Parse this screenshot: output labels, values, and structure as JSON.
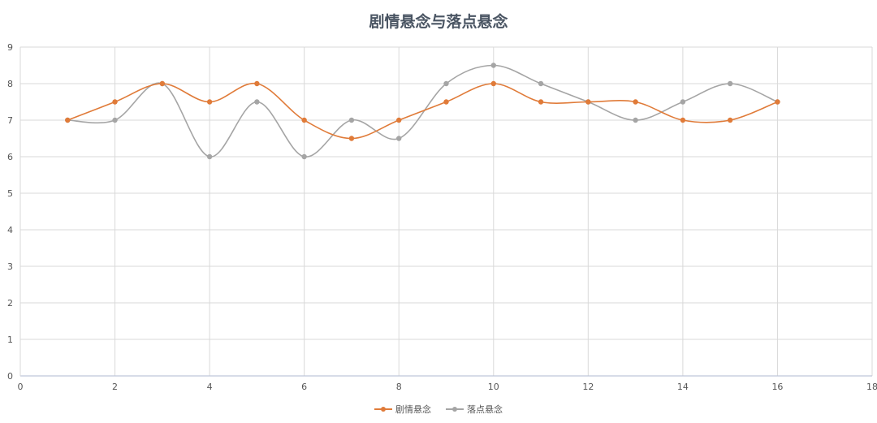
{
  "chart_data": {
    "type": "line",
    "title": "剧情悬念与落点悬念",
    "xlim": [
      0,
      18
    ],
    "ylim": [
      0,
      9
    ],
    "x_ticks": [
      0,
      2,
      4,
      6,
      8,
      10,
      12,
      14,
      16,
      18
    ],
    "y_ticks": [
      0,
      1,
      2,
      3,
      4,
      5,
      6,
      7,
      8,
      9
    ],
    "grid": true,
    "smooth": true,
    "legend_position": "bottom",
    "series": [
      {
        "name": "剧情悬念",
        "color": "#e07b39",
        "x": [
          1,
          2,
          3,
          4,
          5,
          6,
          7,
          8,
          9,
          10,
          11,
          12,
          13,
          14,
          15,
          16
        ],
        "y": [
          7,
          7.5,
          8,
          7.5,
          8,
          7,
          6.5,
          7,
          7.5,
          8,
          7.5,
          7.5,
          7.5,
          7,
          7,
          7.5
        ]
      },
      {
        "name": "落点悬念",
        "color": "#a5a5a5",
        "x": [
          1,
          2,
          3,
          4,
          5,
          6,
          7,
          8,
          9,
          10,
          11,
          12,
          13,
          14,
          15,
          16
        ],
        "y": [
          7,
          7,
          8,
          6,
          7.5,
          6,
          7,
          6.5,
          8,
          8.5,
          8,
          7.5,
          7,
          7.5,
          8,
          7.5
        ]
      }
    ]
  }
}
